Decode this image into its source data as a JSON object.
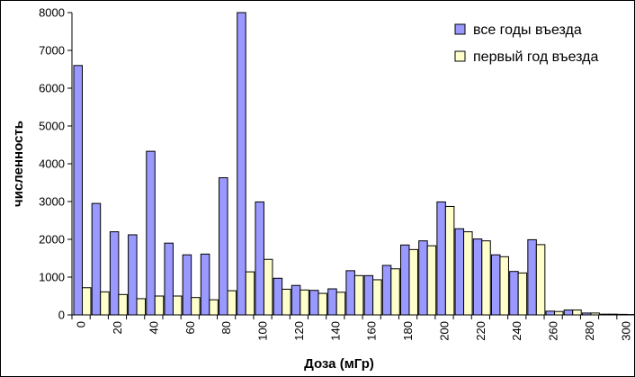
{
  "chart_data": {
    "type": "bar",
    "xlabel": "Доза (мГр)",
    "ylabel": "численность",
    "ylim": [
      0,
      8000
    ],
    "yticks": [
      0,
      1000,
      2000,
      3000,
      4000,
      5000,
      6000,
      7000,
      8000
    ],
    "categories": [
      0,
      10,
      20,
      30,
      40,
      50,
      60,
      70,
      80,
      90,
      100,
      110,
      120,
      130,
      140,
      150,
      160,
      170,
      180,
      190,
      200,
      210,
      220,
      230,
      240,
      250,
      260,
      270,
      280,
      290,
      300
    ],
    "x_tick_labels": [
      "0",
      "20",
      "40",
      "60",
      "80",
      "100",
      "120",
      "140",
      "160",
      "180",
      "200",
      "220",
      "240",
      "260",
      "280",
      "300"
    ],
    "legend_position": "top-right",
    "series": [
      {
        "name": "все годы въезда",
        "color": "#9999ff",
        "values": [
          6600,
          2950,
          2200,
          2120,
          4330,
          1900,
          1590,
          1610,
          3630,
          8000,
          2990,
          970,
          780,
          650,
          690,
          1170,
          1040,
          1310,
          1850,
          1960,
          2990,
          2280,
          2010,
          1590,
          1150,
          1990,
          100,
          130,
          50,
          20,
          15
        ]
      },
      {
        "name": "первый год въезда",
        "color": "#ffffcc",
        "values": [
          720,
          610,
          540,
          430,
          500,
          500,
          460,
          400,
          640,
          1140,
          1470,
          680,
          660,
          570,
          600,
          1040,
          930,
          1220,
          1730,
          1830,
          2870,
          2200,
          1960,
          1540,
          1110,
          1860,
          90,
          130,
          50,
          20,
          10
        ]
      }
    ]
  }
}
